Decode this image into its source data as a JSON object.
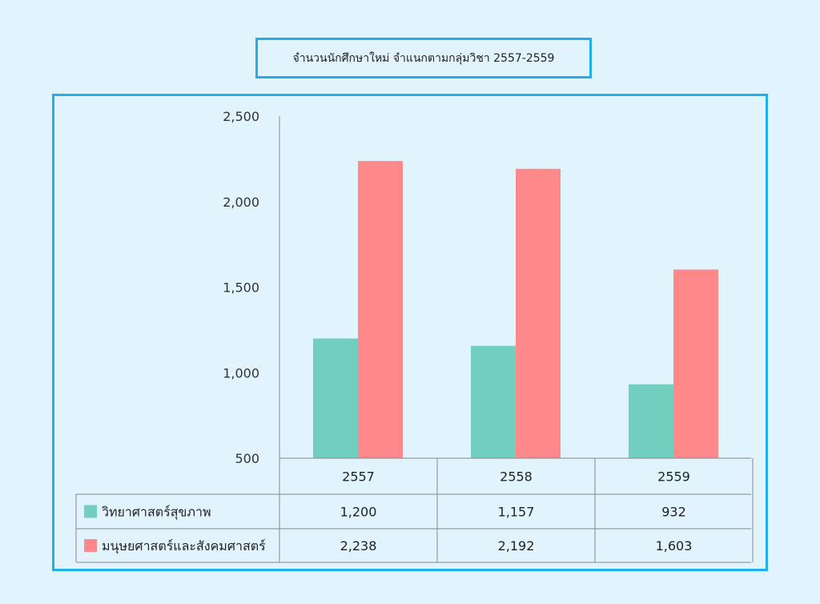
{
  "chart_data": {
    "type": "bar",
    "title": "จำนวนนักศึกษาใหม่ จำแนกตามกลุ่มวิชา 2557-2559",
    "categories": [
      "2557",
      "2558",
      "2559"
    ],
    "series": [
      {
        "name": "วิทยาศาสตร์สุขภาพ",
        "values": [
          1200,
          1157,
          932
        ],
        "labels": [
          "1,200",
          "1,157",
          "932"
        ],
        "color": "#72cfc0"
      },
      {
        "name": "มนุษยศาสตร์และสังคมศาสตร์",
        "values": [
          2238,
          2192,
          1603
        ],
        "labels": [
          "2,238",
          "2,192",
          "1,603"
        ],
        "color": "#ff888b"
      }
    ],
    "ylim": [
      500,
      2500
    ],
    "yticks": [
      500,
      1000,
      1500,
      2000,
      2500
    ],
    "ytick_labels": [
      "500",
      "1,000",
      "1,500",
      "2,000",
      "2,500"
    ],
    "legend": "data-table"
  },
  "colors": {
    "background": "#e1f3fd",
    "frame": "#1eb0e8",
    "grid": "#888888"
  }
}
